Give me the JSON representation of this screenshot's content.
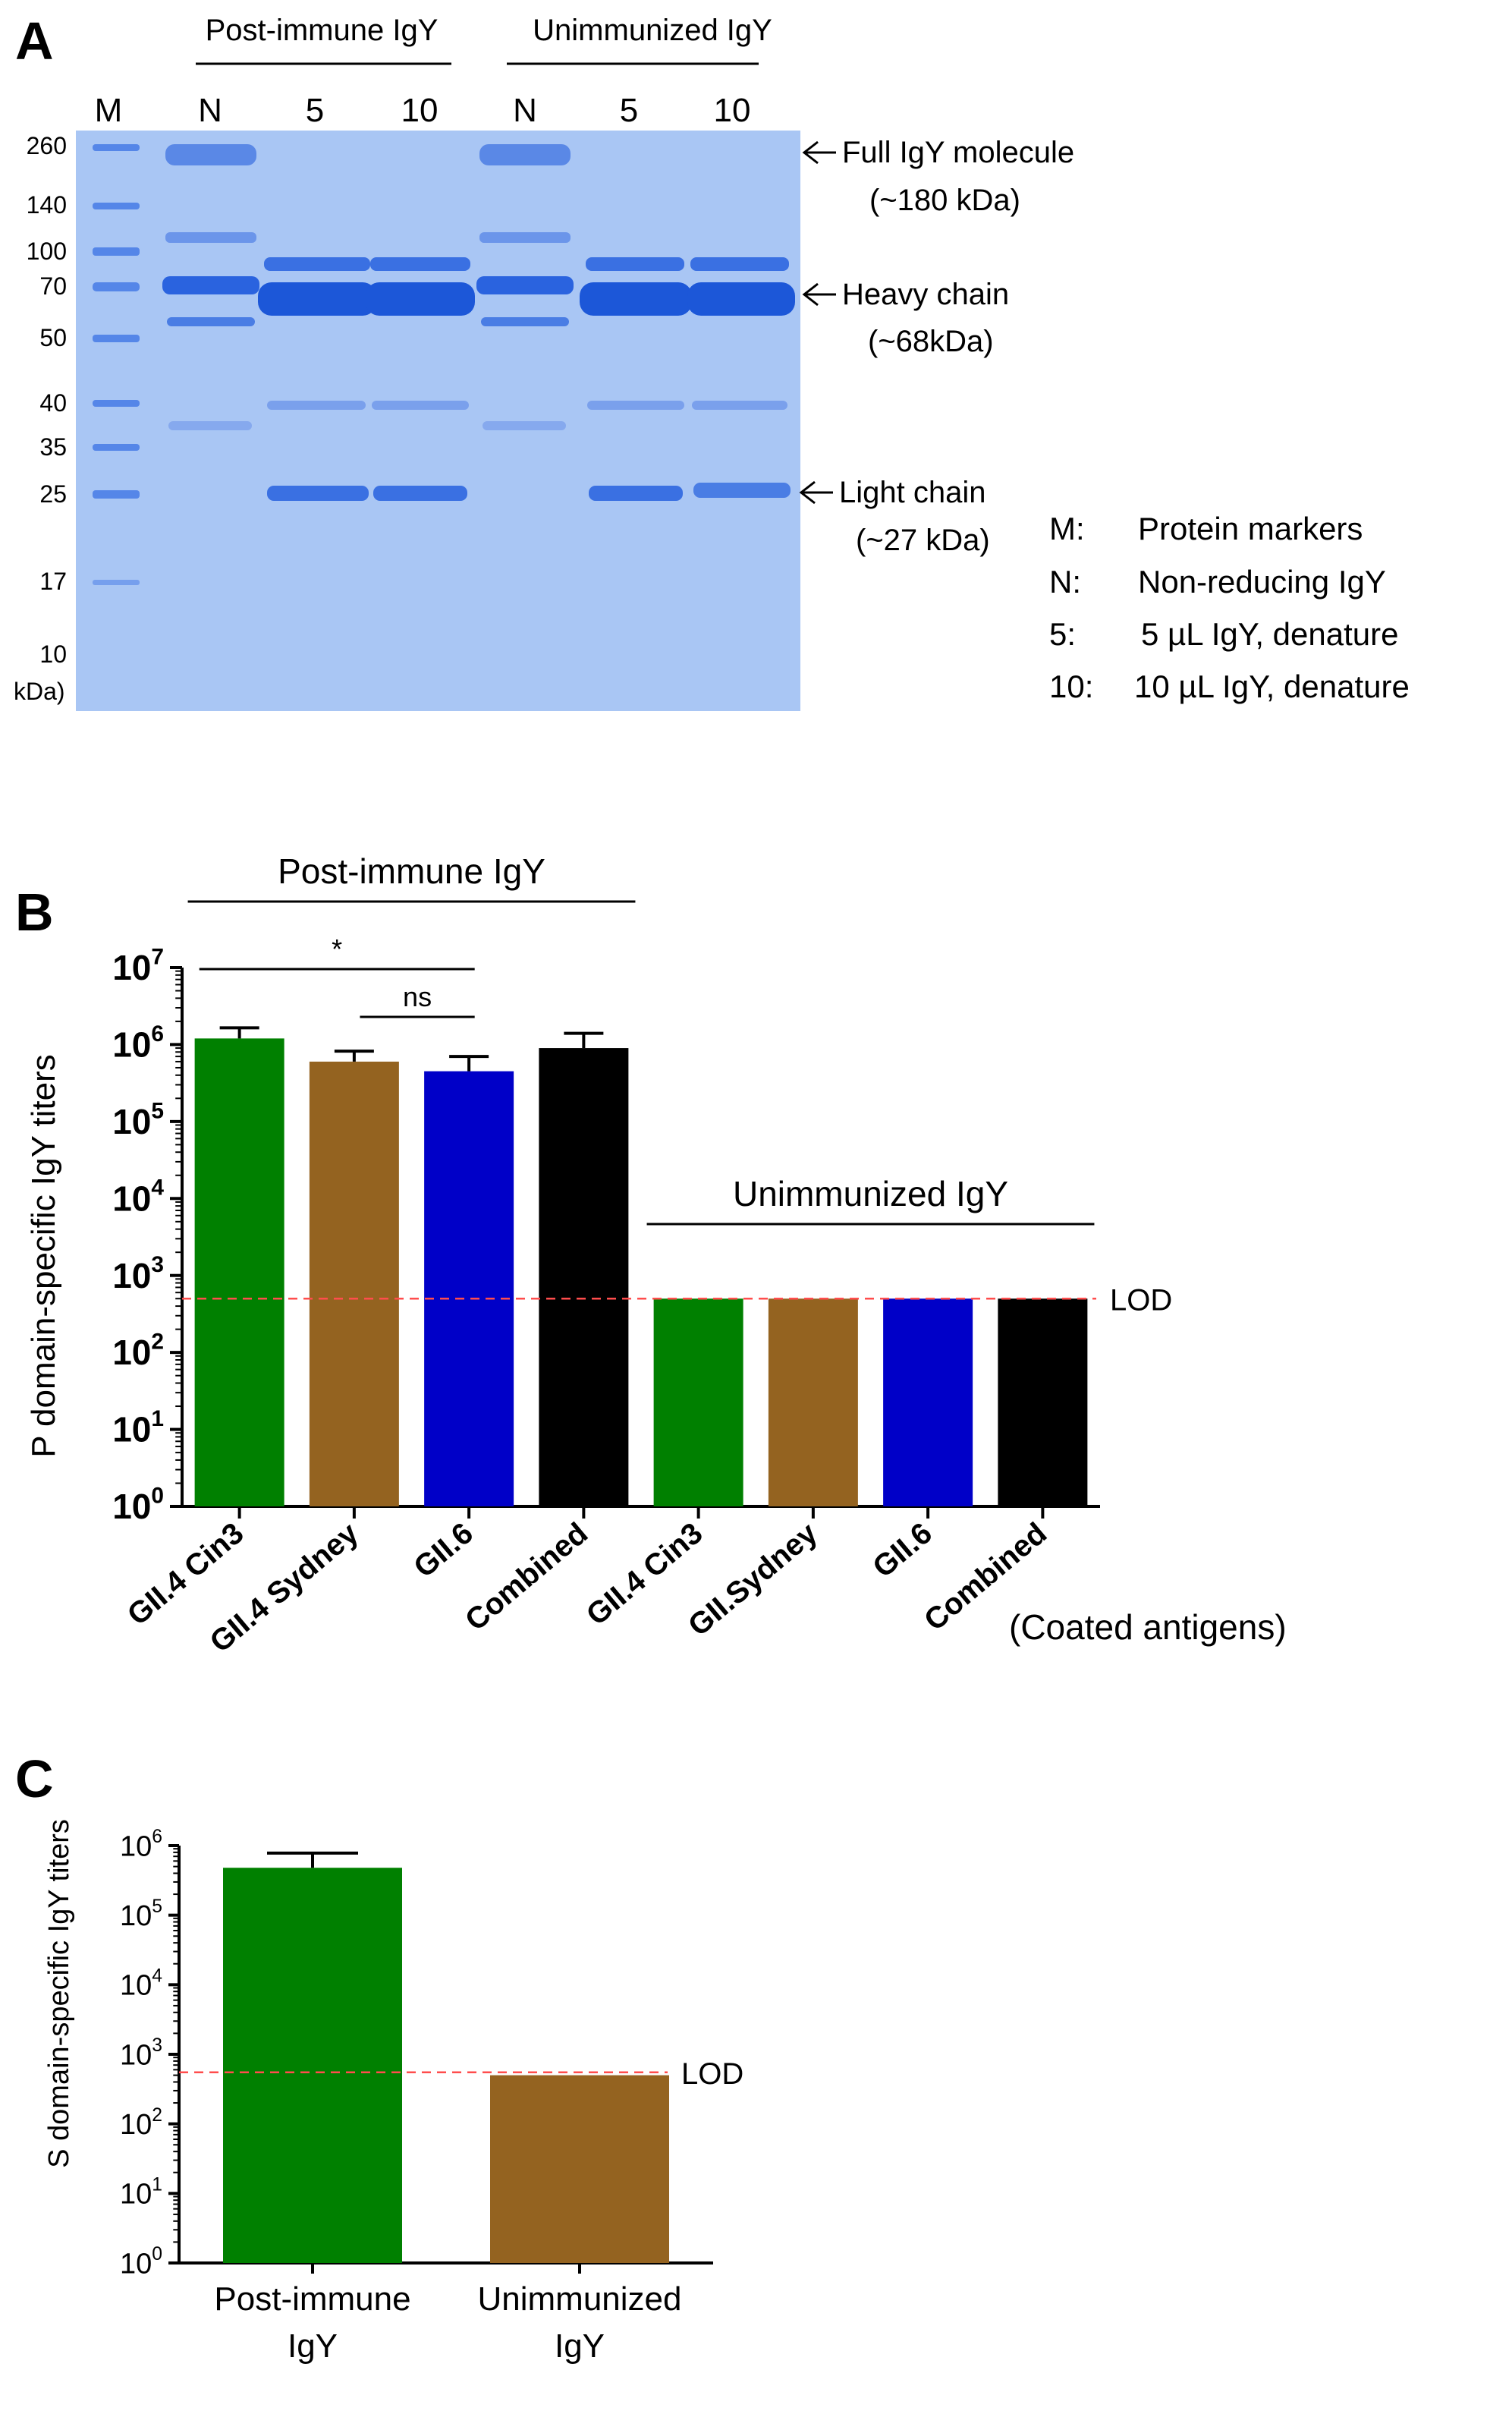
{
  "panel_a": {
    "label": "A",
    "group_labels": [
      "Post-immune IgY",
      "Unimmunized IgY"
    ],
    "lane_labels": [
      "M",
      "N",
      "5",
      "10",
      "N",
      "5",
      "10"
    ],
    "mw_markers": [
      "260",
      "140",
      "100",
      "70",
      "50",
      "40",
      "35",
      "25",
      "17",
      "10"
    ],
    "mw_unit": "kDa)",
    "annotations": [
      {
        "name": "Full IgY molecule",
        "sub": "(~180 kDa)"
      },
      {
        "name": "Heavy chain",
        "sub": "(~68kDa)"
      },
      {
        "name": "Light chain",
        "sub": "(~27 kDa)"
      }
    ],
    "legend": [
      {
        "key": "M:",
        "text": "Protein markers"
      },
      {
        "key": "N:",
        "text": "Non-reducing IgY"
      },
      {
        "key": "5:",
        "text": "5 µL IgY, denature"
      },
      {
        "key": "10:",
        "text": "10 µL IgY, denature"
      }
    ],
    "colors": {
      "gel": "#a9c6f4",
      "band": "#2a63df",
      "marker": "#5586e8"
    }
  },
  "chart_data": [
    {
      "panel": "B",
      "type": "bar",
      "scale": "log10",
      "ylabel": "P domain-specific IgY titers",
      "ylim": [
        1,
        10000000
      ],
      "ytick_exponents": [
        "0",
        "1",
        "2",
        "3",
        "4",
        "5",
        "6",
        "7"
      ],
      "categories": [
        "GII.4 Cin3",
        "GII.4 Sydney",
        "GII.6",
        "Combined",
        "GII.4 Cin3",
        "GII.Sydney",
        "GII.6",
        "Combined"
      ],
      "values": [
        1200000,
        600000,
        450000,
        900000,
        500,
        500,
        500,
        500
      ],
      "error_upper": [
        1650000,
        820000,
        700000,
        1400000,
        null,
        null,
        null,
        null
      ],
      "colors": [
        "#008000",
        "#946320",
        "#0000c8",
        "#000000",
        "#008000",
        "#946320",
        "#0000c8",
        "#000000"
      ],
      "groups": [
        {
          "label": "Post-immune IgY",
          "from": 0,
          "to": 3
        },
        {
          "label": "Unimmunized IgY",
          "from": 4,
          "to": 7
        }
      ],
      "significance": [
        {
          "from": 0,
          "to": 2,
          "label": "*"
        },
        {
          "from": 1,
          "to": 2,
          "label": "ns"
        }
      ],
      "lod": {
        "value": 500,
        "label": "LOD",
        "color": "#ff4d4d"
      },
      "xnote": "(Coated antigens)"
    },
    {
      "panel": "C",
      "type": "bar",
      "scale": "log10",
      "ylabel": "S domain-specific IgY titers",
      "ylim": [
        1,
        1000000
      ],
      "ytick_exponents": [
        "0",
        "1",
        "2",
        "3",
        "4",
        "5",
        "6"
      ],
      "categories": [
        [
          "Post-immune",
          "IgY"
        ],
        [
          "Unimmunized",
          "IgY"
        ]
      ],
      "values": [
        480000,
        500
      ],
      "error_upper": [
        780000,
        null
      ],
      "colors": [
        "#008000",
        "#946320"
      ],
      "lod": {
        "value": 550,
        "label": "LOD",
        "color": "#ff4d4d"
      }
    }
  ]
}
